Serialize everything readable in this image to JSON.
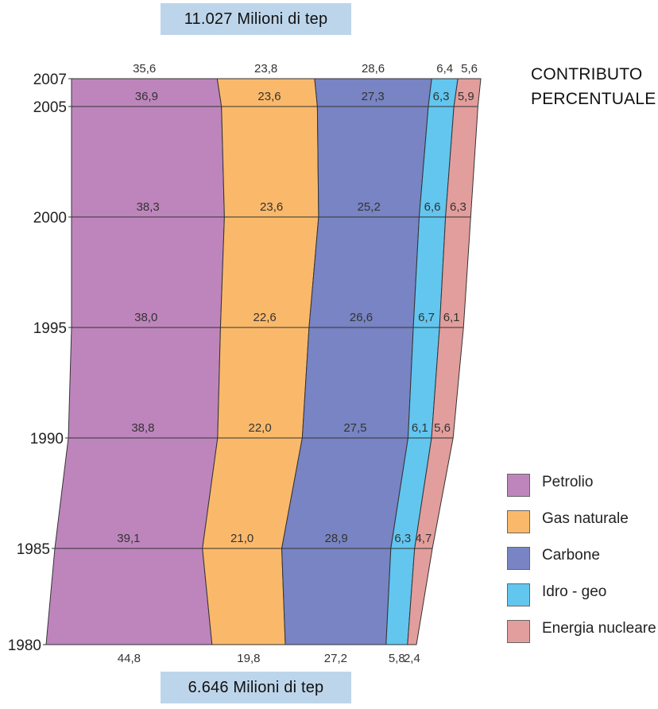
{
  "header": {
    "total_top": "11.027 Milioni di tep",
    "total_bottom": "6.646 Milioni di tep"
  },
  "heading": {
    "line1": "CONTRIBUTO",
    "line2": "PERCENTUALE"
  },
  "legend": [
    {
      "label": "Petrolio",
      "color": "#be85bd"
    },
    {
      "label": "Gas naturale",
      "color": "#fab96a"
    },
    {
      "label": "Carbone",
      "color": "#7884c3"
    },
    {
      "label": "Idro - geo",
      "color": "#62c6ef"
    },
    {
      "label": "Energia nucleare",
      "color": "#e29e9c"
    }
  ],
  "chart_data": {
    "type": "area",
    "categories": [
      "1980",
      "1985",
      "1990",
      "1995",
      "2000",
      "2005",
      "2007"
    ],
    "series": [
      {
        "name": "Petrolio",
        "color": "#be85bd",
        "values": [
          44.8,
          39.1,
          38.8,
          38.0,
          38.3,
          36.9,
          35.6
        ],
        "labels": [
          "44,8",
          "39,1",
          "38,8",
          "38,0",
          "38,3",
          "36,9",
          "35,6"
        ]
      },
      {
        "name": "Gas naturale",
        "color": "#fab96a",
        "values": [
          19.8,
          21.0,
          22.0,
          22.6,
          23.6,
          23.6,
          23.8
        ],
        "labels": [
          "19,8",
          "21,0",
          "22,0",
          "22,6",
          "23,6",
          "23,6",
          "23,8"
        ]
      },
      {
        "name": "Carbone",
        "color": "#7884c3",
        "values": [
          27.2,
          28.9,
          27.5,
          26.6,
          25.2,
          27.3,
          28.6
        ],
        "labels": [
          "27,2",
          "28,9",
          "27,5",
          "26,6",
          "25,2",
          "27,3",
          "28,6"
        ]
      },
      {
        "name": "Idro - geo",
        "color": "#62c6ef",
        "values": [
          5.8,
          6.3,
          6.1,
          6.7,
          6.6,
          6.3,
          6.4
        ],
        "labels": [
          "5,8",
          "6,3",
          "6,1",
          "6,7",
          "6,6",
          "6,3",
          "6,4"
        ]
      },
      {
        "name": "Energia nucleare",
        "color": "#e29e9c",
        "values": [
          2.4,
          4.7,
          5.6,
          6.1,
          6.3,
          5.9,
          5.6
        ],
        "labels": [
          "2,4",
          "4,7",
          "5,6",
          "6,1",
          "6,3",
          "5,9",
          "5,6"
        ]
      }
    ],
    "totals": {
      "1980": 6646,
      "2007": 11027
    },
    "unit": "Milioni di tep",
    "grid": true
  }
}
